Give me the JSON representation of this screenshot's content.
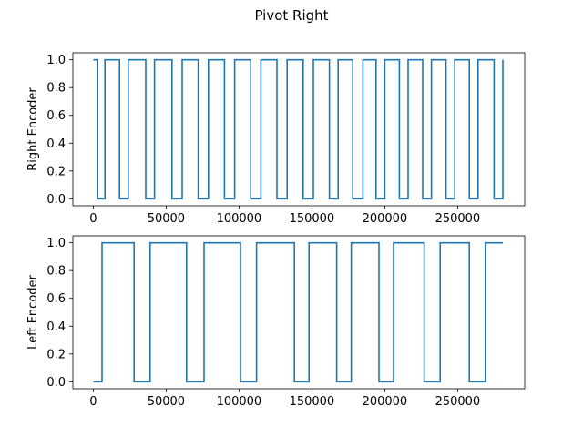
{
  "figure": {
    "title": "Pivot Right"
  },
  "colors": {
    "series": "#1f77b4",
    "axis": "#000000",
    "background": "#ffffff"
  },
  "chart_data": [
    {
      "type": "line",
      "subtype": "step",
      "title": "",
      "xlabel": "",
      "ylabel": "Right Encoder",
      "xlim": [
        -14000,
        296000
      ],
      "ylim": [
        -0.05,
        1.05
      ],
      "xticks": [
        0,
        50000,
        100000,
        150000,
        200000,
        250000
      ],
      "yticks": [
        0.0,
        0.2,
        0.4,
        0.6,
        0.8,
        1.0
      ],
      "xtick_labels": [
        "0",
        "50000",
        "100000",
        "150000",
        "200000",
        "250000"
      ],
      "ytick_labels": [
        "0.0",
        "0.2",
        "0.4",
        "0.6",
        "0.8",
        "1.0"
      ],
      "grid": false,
      "x": [
        0,
        3000,
        3000,
        8000,
        8000,
        18000,
        18000,
        24000,
        24000,
        36000,
        36000,
        42000,
        42000,
        54000,
        54000,
        61000,
        61000,
        72000,
        72000,
        79000,
        79000,
        90000,
        90000,
        97000,
        97000,
        108000,
        108000,
        115000,
        115000,
        126000,
        126000,
        133000,
        133000,
        144000,
        144000,
        151000,
        151000,
        162000,
        162000,
        168000,
        168000,
        178000,
        178000,
        185000,
        185000,
        194000,
        194000,
        200000,
        200000,
        210000,
        210000,
        216000,
        216000,
        226000,
        226000,
        232000,
        232000,
        242000,
        242000,
        248000,
        248000,
        258000,
        258000,
        264000,
        264000,
        275000,
        275000,
        281000,
        281000
      ],
      "y": [
        1,
        1,
        0,
        0,
        1,
        1,
        0,
        0,
        1,
        1,
        0,
        0,
        1,
        1,
        0,
        0,
        1,
        1,
        0,
        0,
        1,
        1,
        0,
        0,
        1,
        1,
        0,
        0,
        1,
        1,
        0,
        0,
        1,
        1,
        0,
        0,
        1,
        1,
        0,
        0,
        1,
        1,
        0,
        0,
        1,
        1,
        0,
        0,
        1,
        1,
        0,
        0,
        1,
        1,
        0,
        0,
        1,
        1,
        0,
        0,
        1,
        1,
        0,
        0,
        1,
        1,
        0,
        0,
        1
      ]
    },
    {
      "type": "line",
      "subtype": "step",
      "title": "",
      "xlabel": "",
      "ylabel": "Left Encoder",
      "xlim": [
        -14000,
        296000
      ],
      "ylim": [
        -0.05,
        1.05
      ],
      "xticks": [
        0,
        50000,
        100000,
        150000,
        200000,
        250000
      ],
      "yticks": [
        0.0,
        0.2,
        0.4,
        0.6,
        0.8,
        1.0
      ],
      "xtick_labels": [
        "0",
        "50000",
        "100000",
        "150000",
        "200000",
        "250000"
      ],
      "ytick_labels": [
        "0.0",
        "0.2",
        "0.4",
        "0.6",
        "0.8",
        "1.0"
      ],
      "grid": false,
      "x": [
        0,
        6000,
        6000,
        28000,
        28000,
        39000,
        39000,
        64000,
        64000,
        76000,
        76000,
        101000,
        101000,
        112000,
        112000,
        138000,
        138000,
        148000,
        148000,
        167000,
        167000,
        177000,
        177000,
        196000,
        196000,
        206000,
        206000,
        227000,
        227000,
        238000,
        238000,
        258000,
        258000,
        269000,
        269000,
        281000
      ],
      "y": [
        0,
        0,
        1,
        1,
        0,
        0,
        1,
        1,
        0,
        0,
        1,
        1,
        0,
        0,
        1,
        1,
        0,
        0,
        1,
        1,
        0,
        0,
        1,
        1,
        0,
        0,
        1,
        1,
        0,
        0,
        1,
        1,
        0,
        0,
        1,
        1
      ]
    }
  ]
}
